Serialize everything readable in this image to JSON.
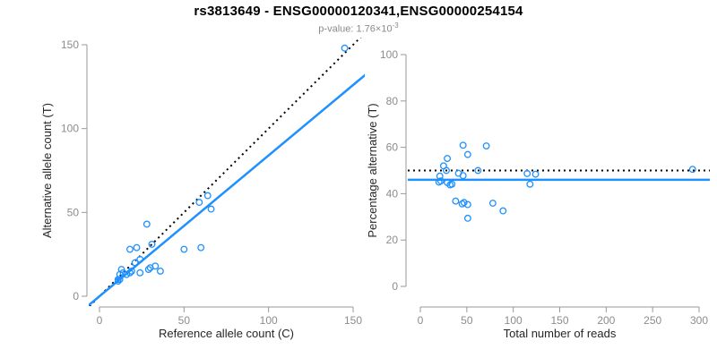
{
  "figure": {
    "title": "rs3813649 - ENSG00000120341,ENSG00000254154",
    "subtitle_prefix": "p-value: 1.76×10",
    "subtitle_exponent": "-3",
    "accent_color": "#1E90FF",
    "reference_line_color": "#000000",
    "tick_label_color": "#8c8c8c",
    "axis_line_color": "#999999",
    "axis_title_color": "#262626"
  },
  "chart_data": [
    {
      "id": "allele-count-scatter",
      "type": "scatter",
      "title": "",
      "xlabel": "Reference allele count (C)",
      "ylabel": "Alternative allele count (T)",
      "xlim": [
        0,
        150
      ],
      "ylim": [
        0,
        150
      ],
      "xticks": [
        0,
        50,
        100,
        150
      ],
      "yticks": [
        0,
        50,
        100,
        150
      ],
      "grid": false,
      "legend": null,
      "points": [
        [
          12,
          13
        ],
        [
          13,
          16
        ],
        [
          18,
          28
        ],
        [
          28,
          43
        ],
        [
          22,
          29
        ],
        [
          14,
          14
        ],
        [
          31,
          31
        ],
        [
          21,
          20
        ],
        [
          24,
          22
        ],
        [
          59,
          56
        ],
        [
          64,
          60
        ],
        [
          11,
          10
        ],
        [
          11,
          9
        ],
        [
          12,
          10
        ],
        [
          16,
          13
        ],
        [
          18,
          14
        ],
        [
          19,
          15
        ],
        [
          66,
          52
        ],
        [
          24,
          14
        ],
        [
          29,
          16
        ],
        [
          30,
          17
        ],
        [
          33,
          18
        ],
        [
          50,
          28
        ],
        [
          60,
          29
        ],
        [
          36,
          15
        ],
        [
          145,
          148
        ]
      ],
      "reference_line": {
        "kind": "slope",
        "slope": 1,
        "intercept": 0,
        "style": "dotted",
        "meaning": "identity y=x"
      },
      "fit_line": {
        "kind": "slope",
        "slope": 0.84,
        "intercept": 0,
        "style": "solid",
        "meaning": "fitted allelic ratio"
      }
    },
    {
      "id": "percentage-alternative-scatter",
      "type": "scatter",
      "title": "",
      "xlabel": "Total number of reads",
      "ylabel": "Percentage alternative (T)",
      "xlim": [
        0,
        300
      ],
      "ylim": [
        0,
        100
      ],
      "xticks": [
        0,
        50,
        100,
        150,
        200,
        250,
        300
      ],
      "yticks": [
        0,
        20,
        40,
        60,
        80,
        100
      ],
      "grid": false,
      "legend": null,
      "points": [
        [
          25,
          52.0
        ],
        [
          29,
          55.2
        ],
        [
          46,
          60.9
        ],
        [
          71,
          60.6
        ],
        [
          51,
          56.9
        ],
        [
          28,
          50.0
        ],
        [
          62,
          50.0
        ],
        [
          41,
          48.8
        ],
        [
          46,
          47.8
        ],
        [
          115,
          48.7
        ],
        [
          124,
          48.4
        ],
        [
          21,
          47.6
        ],
        [
          20,
          45.0
        ],
        [
          22,
          45.5
        ],
        [
          29,
          44.8
        ],
        [
          32,
          43.8
        ],
        [
          34,
          44.1
        ],
        [
          118,
          44.1
        ],
        [
          38,
          36.8
        ],
        [
          45,
          35.6
        ],
        [
          47,
          36.2
        ],
        [
          51,
          35.3
        ],
        [
          78,
          35.9
        ],
        [
          89,
          32.6
        ],
        [
          51,
          29.4
        ],
        [
          293,
          50.5
        ]
      ],
      "reference_line": {
        "kind": "horizontal",
        "y": 50,
        "style": "dotted",
        "meaning": "expected 50%"
      },
      "fit_line": {
        "kind": "horizontal",
        "y": 46,
        "style": "solid",
        "meaning": "observed mean percentage"
      }
    }
  ]
}
